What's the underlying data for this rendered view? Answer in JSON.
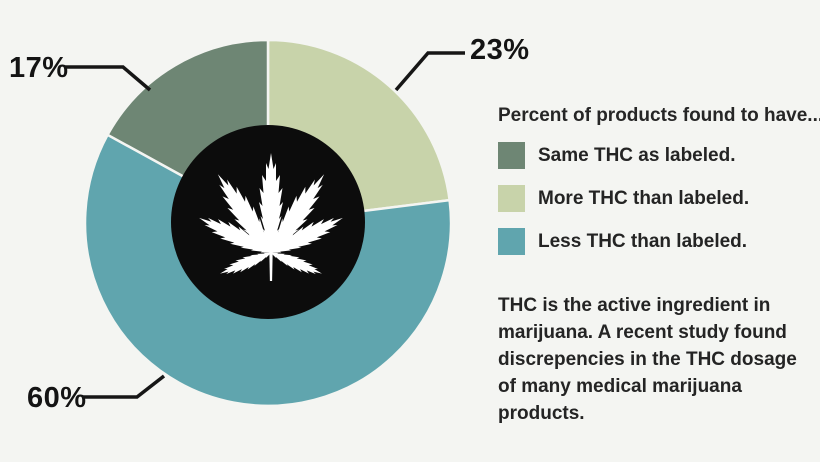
{
  "chart_data": {
    "type": "pie",
    "legend_title": "Percent of products found to have...",
    "series": [
      {
        "name": "Same THC as labeled.",
        "value": 17,
        "display": "17%",
        "color": "#6e8674"
      },
      {
        "name": "More THC than labeled.",
        "value": 23,
        "display": "23%",
        "color": "#c8d3aa"
      },
      {
        "name": "Less THC than labeled.",
        "value": 60,
        "display": "60%",
        "color": "#60a5ae"
      }
    ],
    "draw_order": [
      1,
      2,
      0
    ],
    "start_angle_deg": 0,
    "legend_position": "right",
    "donut_center": {
      "fill": "#0c0c0c",
      "icon": "cannabis-leaf",
      "icon_color": "#ffffff"
    },
    "background": "#f4f5f2"
  },
  "note": "THC is the active ingredient in marijuana. A recent study found discrepencies in the THC dosage of many medical marijuana products."
}
